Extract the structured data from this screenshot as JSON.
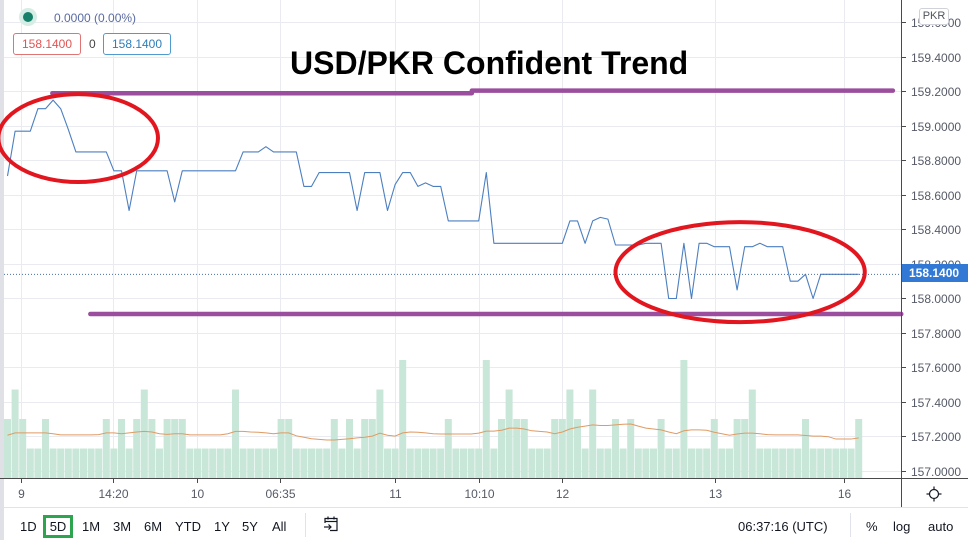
{
  "legend": {
    "change_text": "0.0000 (0.00%)",
    "sell_price": "158.1400",
    "spread": "0",
    "buy_price": "158.1400",
    "status_color": "#17806a"
  },
  "title": "USD/PKR Confident Trend",
  "price_axis": {
    "currency_badge": "PKR",
    "last_price_label": "158.1400",
    "last_price_color": "#3179d4"
  },
  "time_axis": {
    "settings_icon": "gear-icon"
  },
  "toolbar": {
    "ranges": [
      "1D",
      "5D",
      "1M",
      "3M",
      "6M",
      "YTD",
      "1Y",
      "5Y",
      "All"
    ],
    "active_range": "5D",
    "goto_date_icon": "calendar-goto-icon",
    "clock": "06:37:16 (UTC)",
    "percent_label": "%",
    "log_label": "log",
    "auto_label": "auto",
    "active_color": "#2da44e"
  },
  "chart_data": {
    "type": "line",
    "title": "USD/PKR Confident Trend",
    "xlabel": "",
    "ylabel": "PKR",
    "ylim": [
      156.9594,
      159.7304
    ],
    "grid": true,
    "y_ticks": [
      159.6,
      159.4,
      159.2,
      159.0,
      158.8,
      158.6,
      158.4,
      158.2,
      158.0,
      157.8,
      157.6,
      157.4,
      157.2,
      157.0
    ],
    "y_tick_labels": [
      "159.6000",
      "159.4000",
      "159.2000",
      "159.0000",
      "158.8000",
      "158.6000",
      "158.4000",
      "158.2000",
      "158.0000",
      "157.8000",
      "157.6000",
      "157.4000",
      "157.2000",
      "157.0000"
    ],
    "x_ticks": [
      {
        "label": "9",
        "index": 1.8
      },
      {
        "label": "14:20",
        "index": 13.9
      },
      {
        "label": "10",
        "index": 24.9
      },
      {
        "label": "06:35",
        "index": 35.9
      },
      {
        "label": "11",
        "index": 51
      },
      {
        "label": "10:10",
        "index": 62
      },
      {
        "label": "12",
        "index": 73
      },
      {
        "label": "13",
        "index": 93.1
      },
      {
        "label": "16",
        "index": 110
      }
    ],
    "last_price": 158.14,
    "series": [
      {
        "name": "USD/PKR",
        "color": "#4c7fc0",
        "values": [
          158.71,
          158.97,
          158.97,
          158.97,
          159.1,
          159.1,
          159.15,
          159.1,
          158.98,
          158.85,
          158.85,
          158.85,
          158.85,
          158.85,
          158.74,
          158.74,
          158.51,
          158.74,
          158.74,
          158.74,
          158.74,
          158.74,
          158.56,
          158.74,
          158.74,
          158.74,
          158.74,
          158.74,
          158.74,
          158.74,
          158.74,
          158.85,
          158.85,
          158.85,
          158.88,
          158.85,
          158.85,
          158.85,
          158.85,
          158.65,
          158.65,
          158.73,
          158.73,
          158.73,
          158.73,
          158.73,
          158.51,
          158.73,
          158.73,
          158.73,
          158.51,
          158.66,
          158.73,
          158.73,
          158.65,
          158.67,
          158.65,
          158.65,
          158.45,
          158.45,
          158.45,
          158.45,
          158.45,
          158.73,
          158.32,
          158.32,
          158.32,
          158.32,
          158.32,
          158.32,
          158.32,
          158.32,
          158.32,
          158.32,
          158.45,
          158.45,
          158.32,
          158.45,
          158.47,
          158.46,
          158.31,
          158.31,
          158.31,
          158.31,
          158.32,
          158.32,
          158.32,
          158.0,
          158.0,
          158.32,
          158.0,
          158.32,
          158.32,
          158.3,
          158.3,
          158.3,
          158.05,
          158.3,
          158.3,
          158.32,
          158.3,
          158.3,
          158.3,
          158.1,
          158.1,
          158.14,
          158.0,
          158.14,
          158.14,
          158.14,
          158.14,
          158.14,
          158.14
        ]
      }
    ],
    "volume": {
      "color": "#c9e7d9",
      "ma_color": "#e09a63",
      "values": [
        2,
        3,
        2,
        1,
        1,
        2,
        1,
        1,
        1,
        1,
        1,
        1,
        1,
        2,
        1,
        2,
        1,
        2,
        3,
        2,
        1,
        2,
        2,
        2,
        1,
        1,
        1,
        1,
        1,
        1,
        3,
        1,
        1,
        1,
        1,
        1,
        2,
        2,
        1,
        1,
        1,
        1,
        1,
        2,
        1,
        2,
        1,
        2,
        2,
        3,
        1,
        1,
        4,
        1,
        1,
        1,
        1,
        1,
        2,
        1,
        1,
        1,
        1,
        4,
        1,
        2,
        3,
        2,
        2,
        1,
        1,
        1,
        2,
        2,
        3,
        2,
        1,
        3,
        1,
        1,
        2,
        1,
        2,
        1,
        1,
        1,
        2,
        1,
        1,
        4,
        1,
        1,
        1,
        2,
        1,
        1,
        2,
        2,
        3,
        1,
        1,
        1,
        1,
        1,
        1,
        2,
        1,
        1,
        1,
        1,
        1,
        1,
        2
      ],
      "ma": [
        1.45,
        1.53,
        1.53,
        1.53,
        1.53,
        1.53,
        1.5,
        1.46,
        1.46,
        1.46,
        1.46,
        1.46,
        1.47,
        1.53,
        1.53,
        1.5,
        1.53,
        1.56,
        1.58,
        1.56,
        1.5,
        1.48,
        1.5,
        1.5,
        1.46,
        1.46,
        1.46,
        1.46,
        1.46,
        1.5,
        1.58,
        1.58,
        1.56,
        1.55,
        1.53,
        1.5,
        1.53,
        1.53,
        1.43,
        1.38,
        1.33,
        1.31,
        1.29,
        1.29,
        1.31,
        1.33,
        1.36,
        1.38,
        1.42,
        1.52,
        1.45,
        1.42,
        1.53,
        1.56,
        1.55,
        1.53,
        1.5,
        1.49,
        1.49,
        1.49,
        1.49,
        1.49,
        1.52,
        1.59,
        1.59,
        1.62,
        1.69,
        1.69,
        1.66,
        1.6,
        1.58,
        1.56,
        1.5,
        1.56,
        1.66,
        1.72,
        1.76,
        1.8,
        1.78,
        1.78,
        1.8,
        1.82,
        1.83,
        1.76,
        1.69,
        1.66,
        1.63,
        1.56,
        1.5,
        1.6,
        1.63,
        1.63,
        1.62,
        1.55,
        1.5,
        1.45,
        1.49,
        1.52,
        1.52,
        1.5,
        1.47,
        1.46,
        1.46,
        1.46,
        1.46,
        1.44,
        1.42,
        1.42,
        1.4,
        1.32,
        1.32,
        1.32,
        1.36
      ]
    },
    "drawings": {
      "line_color": "#9b4e9d",
      "ellipse_color": "#e2161f",
      "horizontal_lines": [
        {
          "name": "resistance-line-left",
          "price": 159.19,
          "from_index": 5.9,
          "to_index": 61.1
        },
        {
          "name": "resistance-line-right",
          "price": 159.205,
          "from_index": 61.1,
          "to_index": 116.5
        },
        {
          "name": "support-line",
          "price": 157.91,
          "from_index": 10.9,
          "to_index": 117.6
        }
      ],
      "ellipses": [
        {
          "name": "highlight-ellipse-high",
          "center_index": 9.3,
          "center_price": 158.93,
          "rx_bars": 10.5,
          "ry_price": 0.255
        },
        {
          "name": "highlight-ellipse-low",
          "center_index": 96.4,
          "center_price": 158.153,
          "rx_bars": 16.4,
          "ry_price": 0.29
        }
      ]
    }
  }
}
